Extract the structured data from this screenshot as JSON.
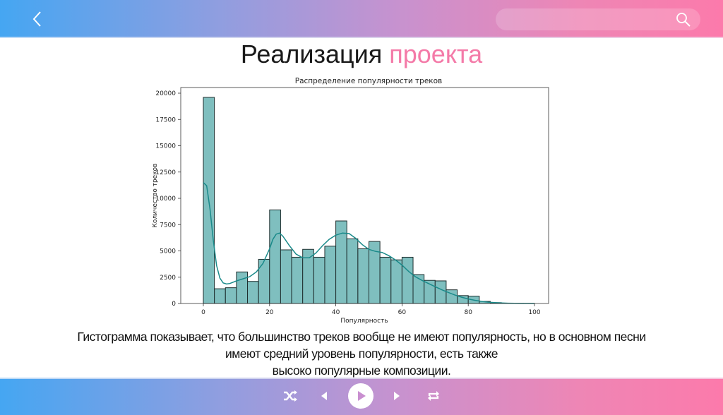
{
  "header": {
    "back_icon": "chevron-left-icon",
    "search_placeholder": "",
    "search_icon": "search-icon"
  },
  "slide": {
    "title_main": "Реализация",
    "title_accent": "проекта",
    "accent_color": "#f47aa8",
    "caption_line1": "Гистограмма показывает, что большинство треков вообще не имеют популярность, но в основном песни",
    "caption_line2": "имеют средний уровень популярности, есть также",
    "caption_line3": "высоко популярные композиции."
  },
  "player": {
    "shuffle_icon": "shuffle-icon",
    "prev_icon": "previous-icon",
    "play_icon": "play-icon",
    "next_icon": "next-icon",
    "repeat_icon": "repeat-icon"
  },
  "chart_data": {
    "type": "bar",
    "title": "Распределение популярности треков",
    "xlabel": "Популярность",
    "ylabel": "Количество треков",
    "xlim": [
      -5,
      105
    ],
    "ylim": [
      0,
      20500
    ],
    "xticks": [
      0,
      20,
      40,
      60,
      80,
      100
    ],
    "yticks": [
      0,
      2500,
      5000,
      7500,
      10000,
      12500,
      15000,
      17500,
      20000
    ],
    "bin_width": 3.33,
    "bin_starts": [
      0,
      3.33,
      6.67,
      10,
      13.33,
      16.67,
      20,
      23.33,
      26.67,
      30,
      33.33,
      36.67,
      40,
      43.33,
      46.67,
      50,
      53.33,
      56.67,
      60,
      63.33,
      66.67,
      70,
      73.33,
      76.67,
      80,
      83.33,
      86.67,
      90,
      93.33,
      96.67
    ],
    "values": [
      19600,
      1400,
      1500,
      3000,
      2100,
      4200,
      8900,
      5100,
      4400,
      5150,
      4400,
      5450,
      7850,
      6150,
      5200,
      5900,
      4400,
      4150,
      4400,
      2750,
      2200,
      2150,
      1300,
      750,
      700,
      200,
      80,
      30,
      10,
      5
    ],
    "bar_color": "#7fbfbf",
    "kde_color": "#1a8a8a",
    "kde": {
      "x": [
        0,
        1,
        2,
        3,
        4,
        5,
        6,
        7,
        8,
        10,
        12,
        14,
        16,
        18,
        20,
        21,
        22,
        23,
        24,
        26,
        28,
        30,
        32,
        34,
        36,
        38,
        40,
        42,
        44,
        46,
        48,
        50,
        52,
        54,
        56,
        58,
        60,
        62,
        64,
        66,
        68,
        70,
        72,
        74,
        76,
        78,
        80,
        82,
        84,
        86,
        88,
        90,
        92,
        94,
        96,
        98,
        100
      ],
      "y": [
        11500,
        11200,
        9000,
        6000,
        3600,
        2400,
        1950,
        1850,
        1900,
        2150,
        2350,
        2550,
        3000,
        3800,
        5200,
        6100,
        6600,
        6700,
        6400,
        5500,
        4700,
        4350,
        4350,
        4800,
        5500,
        6100,
        6500,
        6700,
        6650,
        6200,
        5600,
        5150,
        4950,
        4850,
        4550,
        4150,
        3650,
        3050,
        2550,
        2200,
        1900,
        1600,
        1300,
        1050,
        800,
        600,
        430,
        300,
        200,
        130,
        80,
        50,
        30,
        18,
        10,
        5,
        2
      ]
    },
    "grid": false,
    "legend": null
  }
}
